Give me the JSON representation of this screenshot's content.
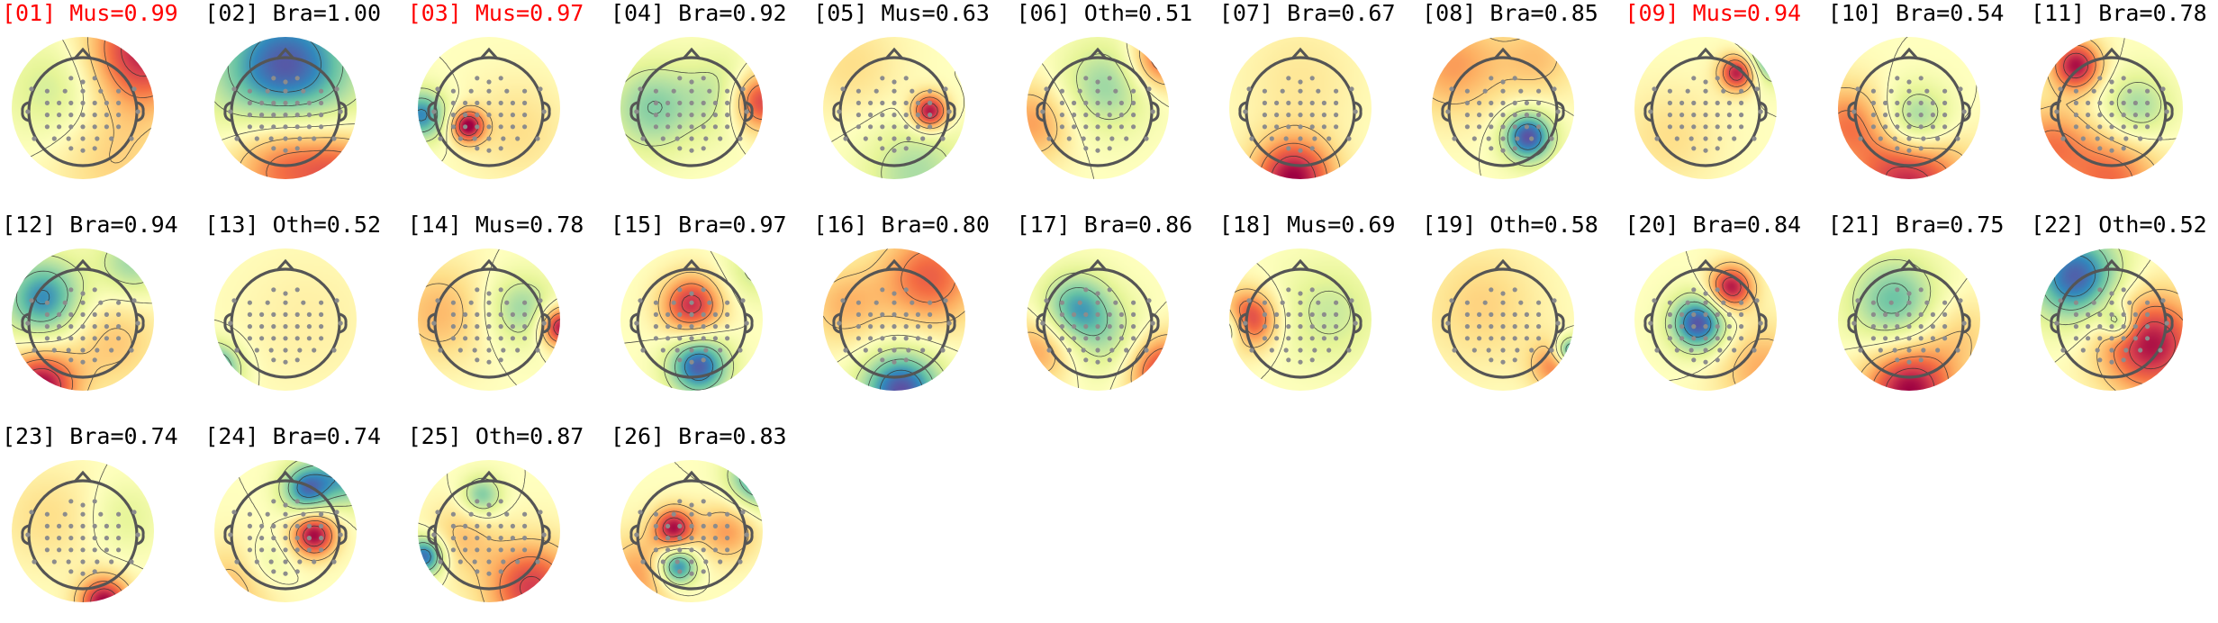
{
  "figure": {
    "colors": {
      "label_default": "#000000",
      "label_flagged": "#ff0000",
      "sensor_dot": "#8c8c8c",
      "head_outline": "#555555",
      "contour_line": "#333333",
      "colormap": [
        "#5e4fa2",
        "#3288bd",
        "#66c2a5",
        "#abdda4",
        "#e6f598",
        "#ffffbf",
        "#fee08b",
        "#fdae61",
        "#f46d43",
        "#d53e4f",
        "#9e0142"
      ]
    },
    "components": [
      {
        "index": "01",
        "cls": "Mus",
        "prob": "0.99",
        "flagged": true,
        "blobs": [
          [
            0.85,
            -0.8,
            0.9,
            0.55
          ],
          [
            -0.4,
            -0.25,
            -0.3,
            0.5
          ],
          [
            0.4,
            0.7,
            0.25,
            0.6
          ]
        ]
      },
      {
        "index": "02",
        "cls": "Bra",
        "prob": "1.00",
        "flagged": false,
        "blobs": [
          [
            0,
            -0.55,
            -1.0,
            0.7
          ],
          [
            0,
            0.75,
            0.7,
            0.55
          ],
          [
            0.85,
            0.9,
            0.5,
            0.4
          ]
        ]
      },
      {
        "index": "03",
        "cls": "Mus",
        "prob": "0.97",
        "flagged": true,
        "blobs": [
          [
            -0.3,
            0.25,
            1.0,
            0.16
          ],
          [
            -0.95,
            0.1,
            -0.8,
            0.25
          ],
          [
            0.4,
            0.3,
            0.2,
            0.5
          ]
        ]
      },
      {
        "index": "04",
        "cls": "Bra",
        "prob": "0.92",
        "flagged": false,
        "blobs": [
          [
            -0.55,
            0.0,
            -0.5,
            0.45
          ],
          [
            0.95,
            -0.1,
            0.9,
            0.3
          ],
          [
            0.5,
            -0.2,
            -0.35,
            0.4
          ]
        ]
      },
      {
        "index": "05",
        "cls": "Mus",
        "prob": "0.63",
        "flagged": false,
        "blobs": [
          [
            0.5,
            0.05,
            1.0,
            0.18
          ],
          [
            0.3,
            0.9,
            -0.4,
            0.5
          ],
          [
            -0.6,
            -0.6,
            0.2,
            0.5
          ]
        ]
      },
      {
        "index": "06",
        "cls": "Oth",
        "prob": "0.51",
        "flagged": false,
        "blobs": [
          [
            0.1,
            -0.3,
            -0.45,
            0.45
          ],
          [
            0.9,
            -0.7,
            0.7,
            0.3
          ],
          [
            -0.9,
            0.2,
            0.45,
            0.4
          ]
        ]
      },
      {
        "index": "07",
        "cls": "Bra",
        "prob": "0.67",
        "flagged": false,
        "blobs": [
          [
            -0.1,
            1.0,
            1.0,
            0.4
          ],
          [
            0,
            -0.4,
            0.15,
            0.6
          ]
        ]
      },
      {
        "index": "08",
        "cls": "Bra",
        "prob": "0.85",
        "flagged": false,
        "blobs": [
          [
            0.35,
            0.4,
            -1.0,
            0.25
          ],
          [
            -0.7,
            -0.6,
            0.45,
            0.5
          ],
          [
            0.5,
            -0.7,
            0.3,
            0.4
          ]
        ]
      },
      {
        "index": "09",
        "cls": "Mus",
        "prob": "0.94",
        "flagged": true,
        "blobs": [
          [
            0.45,
            -0.5,
            0.95,
            0.18
          ],
          [
            0.95,
            -0.75,
            -0.85,
            0.25
          ],
          [
            -0.5,
            0.4,
            0.2,
            0.5
          ]
        ]
      },
      {
        "index": "10",
        "cls": "Bra",
        "prob": "0.54",
        "flagged": false,
        "blobs": [
          [
            0.1,
            0.2,
            -0.65,
            0.35
          ],
          [
            0,
            1.0,
            0.9,
            0.55
          ],
          [
            -0.9,
            0.2,
            0.5,
            0.4
          ]
        ]
      },
      {
        "index": "11",
        "cls": "Bra",
        "prob": "0.78",
        "flagged": false,
        "blobs": [
          [
            -0.5,
            -0.6,
            0.95,
            0.25
          ],
          [
            0.35,
            0.0,
            -0.45,
            0.35
          ],
          [
            0,
            1.0,
            0.6,
            0.5
          ],
          [
            -0.9,
            0.5,
            0.5,
            0.4
          ]
        ]
      },
      {
        "index": "12",
        "cls": "Bra",
        "prob": "0.94",
        "flagged": false,
        "blobs": [
          [
            -0.6,
            0.95,
            1.0,
            0.35
          ],
          [
            -0.55,
            -0.3,
            -0.8,
            0.4
          ],
          [
            0.7,
            -0.8,
            -0.45,
            0.35
          ],
          [
            0.4,
            0.3,
            0.3,
            0.5
          ]
        ]
      },
      {
        "index": "13",
        "cls": "Oth",
        "prob": "0.52",
        "flagged": false,
        "blobs": [
          [
            -1.0,
            0.7,
            -0.85,
            0.25
          ],
          [
            0.3,
            0.0,
            0.1,
            0.7
          ]
        ]
      },
      {
        "index": "14",
        "cls": "Mus",
        "prob": "0.78",
        "flagged": false,
        "blobs": [
          [
            0.45,
            -0.15,
            -0.45,
            0.35
          ],
          [
            1.0,
            0.1,
            1.0,
            0.2
          ],
          [
            -0.7,
            -0.1,
            0.35,
            0.5
          ]
        ]
      },
      {
        "index": "15",
        "cls": "Bra",
        "prob": "0.97",
        "flagged": false,
        "blobs": [
          [
            0.0,
            -0.2,
            0.85,
            0.3
          ],
          [
            0.1,
            0.65,
            -0.95,
            0.3
          ],
          [
            0.9,
            -0.7,
            -0.3,
            0.3
          ]
        ]
      },
      {
        "index": "16",
        "cls": "Bra",
        "prob": "0.80",
        "flagged": false,
        "blobs": [
          [
            0.1,
            1.0,
            -1.0,
            0.4
          ],
          [
            0.5,
            -0.6,
            0.65,
            0.5
          ],
          [
            -0.7,
            -0.2,
            0.35,
            0.4
          ]
        ]
      },
      {
        "index": "17",
        "cls": "Bra",
        "prob": "0.86",
        "flagged": false,
        "blobs": [
          [
            -0.3,
            -0.15,
            -0.7,
            0.35
          ],
          [
            0.9,
            0.7,
            0.8,
            0.35
          ],
          [
            0.2,
            0.3,
            -0.3,
            0.4
          ],
          [
            -0.8,
            0.4,
            0.45,
            0.35
          ]
        ]
      },
      {
        "index": "18",
        "cls": "Mus",
        "prob": "0.69",
        "flagged": false,
        "blobs": [
          [
            -0.75,
            0.0,
            0.9,
            0.28
          ],
          [
            -1.0,
            0.1,
            -0.6,
            0.2
          ],
          [
            0.4,
            -0.1,
            -0.3,
            0.5
          ]
        ]
      },
      {
        "index": "19",
        "cls": "Oth",
        "prob": "0.58",
        "flagged": false,
        "blobs": [
          [
            0.95,
            0.45,
            -0.95,
            0.15
          ],
          [
            0.75,
            0.65,
            0.55,
            0.25
          ],
          [
            -0.3,
            -0.2,
            0.25,
            0.6
          ]
        ]
      },
      {
        "index": "20",
        "cls": "Bra",
        "prob": "0.84",
        "flagged": false,
        "blobs": [
          [
            -0.1,
            0.05,
            -1.0,
            0.28
          ],
          [
            0.35,
            -0.45,
            0.95,
            0.22
          ],
          [
            0.8,
            0.7,
            0.4,
            0.45
          ]
        ]
      },
      {
        "index": "21",
        "cls": "Bra",
        "prob": "0.75",
        "flagged": false,
        "blobs": [
          [
            -0.2,
            -0.25,
            -0.6,
            0.45
          ],
          [
            0,
            1.0,
            1.0,
            0.45
          ],
          [
            0.7,
            0.2,
            0.25,
            0.4
          ]
        ]
      },
      {
        "index": "22",
        "cls": "Oth",
        "prob": "0.52",
        "flagged": false,
        "blobs": [
          [
            0.55,
            0.35,
            0.95,
            0.5
          ],
          [
            -0.5,
            -0.6,
            -0.95,
            0.45
          ],
          [
            0.1,
            0.05,
            -0.6,
            0.15
          ]
        ]
      },
      {
        "index": "23",
        "cls": "Bra",
        "prob": "0.74",
        "flagged": false,
        "blobs": [
          [
            0.3,
            1.0,
            1.0,
            0.25
          ],
          [
            -0.5,
            -0.2,
            0.2,
            0.5
          ],
          [
            0.6,
            -0.2,
            -0.2,
            0.35
          ]
        ]
      },
      {
        "index": "24",
        "cls": "Bra",
        "prob": "0.74",
        "flagged": false,
        "blobs": [
          [
            0.3,
            -0.6,
            -0.85,
            0.25
          ],
          [
            0.4,
            0.05,
            1.0,
            0.22
          ],
          [
            0.9,
            -0.8,
            -0.7,
            0.3
          ],
          [
            -0.3,
            0.5,
            -0.3,
            0.3
          ],
          [
            -0.6,
            0.7,
            0.4,
            0.4
          ]
        ]
      },
      {
        "index": "25",
        "cls": "Oth",
        "prob": "0.87",
        "flagged": false,
        "blobs": [
          [
            -0.9,
            0.35,
            -0.95,
            0.2
          ],
          [
            -0.1,
            -0.5,
            -0.55,
            0.2
          ],
          [
            0.6,
            0.8,
            0.8,
            0.45
          ],
          [
            -0.4,
            0.1,
            0.3,
            0.35
          ]
        ]
      },
      {
        "index": "26",
        "cls": "Bra",
        "prob": "0.83",
        "flagged": false,
        "blobs": [
          [
            -0.25,
            -0.05,
            0.9,
            0.2
          ],
          [
            -0.2,
            0.5,
            -0.95,
            0.2
          ],
          [
            0.95,
            -0.75,
            -0.8,
            0.3
          ],
          [
            0.5,
            0.0,
            0.45,
            0.3
          ],
          [
            -0.7,
            0.6,
            0.45,
            0.4
          ]
        ]
      }
    ]
  }
}
